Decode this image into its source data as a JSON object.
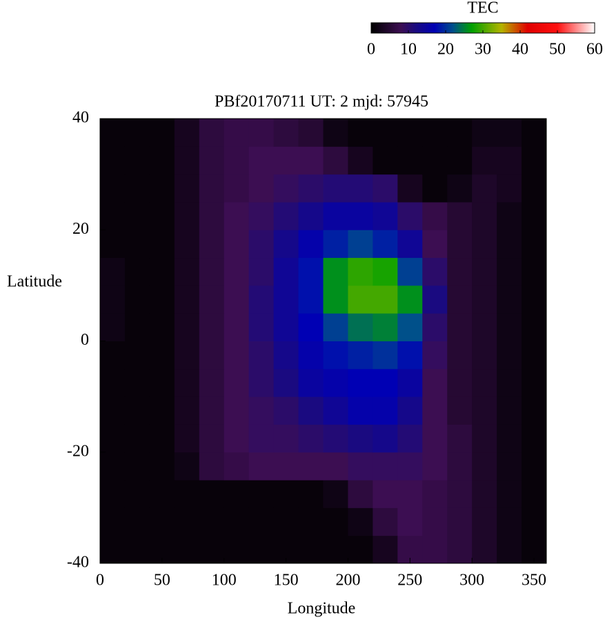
{
  "chart_data": {
    "type": "heatmap",
    "title": "PBf20170711  UT: 2  mjd: 57945",
    "xlabel": "Longitude",
    "ylabel": "Latitude",
    "colorbar_label": "TEC",
    "x": [
      10,
      30,
      50,
      70,
      90,
      110,
      130,
      150,
      170,
      190,
      210,
      230,
      250,
      270,
      290,
      310,
      330,
      350
    ],
    "y": [
      -37.5,
      -32.5,
      -27.5,
      -22.5,
      -17.5,
      -12.5,
      -7.5,
      -2.5,
      2.5,
      7.5,
      12.5,
      17.5,
      22.5,
      27.5,
      32.5,
      37.5
    ],
    "z": [
      [
        1,
        1,
        1,
        1,
        1,
        1,
        1,
        1,
        1,
        1,
        1,
        3,
        7,
        7,
        6,
        4,
        2,
        1
      ],
      [
        1,
        1,
        1,
        1,
        1,
        1,
        1,
        1,
        1,
        1,
        2,
        6,
        8,
        7,
        6,
        4,
        2,
        1
      ],
      [
        1,
        1,
        1,
        1,
        1,
        1,
        1,
        1,
        1,
        2,
        6,
        8,
        8,
        7,
        6,
        4,
        2,
        1
      ],
      [
        1,
        1,
        1,
        2,
        6,
        7,
        8,
        8,
        8,
        8,
        9,
        9,
        9,
        8,
        6,
        4,
        2,
        1
      ],
      [
        1,
        1,
        1,
        3,
        6,
        8,
        9,
        9,
        10,
        11,
        12,
        13,
        11,
        8,
        6,
        4,
        2,
        1
      ],
      [
        1,
        1,
        1,
        3,
        6,
        8,
        9,
        10,
        12,
        14,
        16,
        16,
        13,
        8,
        5,
        4,
        2,
        1
      ],
      [
        1,
        1,
        1,
        3,
        6,
        8,
        10,
        12,
        15,
        16,
        17,
        17,
        15,
        8,
        5,
        4,
        2,
        1
      ],
      [
        1,
        1,
        1,
        3,
        6,
        8,
        10,
        13,
        16,
        18,
        19,
        20,
        18,
        9,
        5,
        4,
        2,
        1
      ],
      [
        2,
        1,
        1,
        3,
        6,
        8,
        11,
        14,
        17,
        21,
        24,
        25,
        22,
        10,
        5,
        4,
        2,
        1
      ],
      [
        2,
        1,
        1,
        3,
        6,
        8,
        11,
        14,
        18,
        26,
        30,
        30,
        26,
        12,
        5,
        4,
        2,
        1
      ],
      [
        2,
        1,
        1,
        3,
        6,
        8,
        10,
        14,
        18,
        26,
        29,
        28,
        21,
        10,
        5,
        4,
        2,
        1
      ],
      [
        1,
        1,
        1,
        3,
        6,
        8,
        10,
        13,
        16,
        19,
        21,
        19,
        14,
        8,
        5,
        4,
        2,
        1
      ],
      [
        1,
        1,
        1,
        3,
        6,
        8,
        9,
        11,
        13,
        15,
        15,
        14,
        10,
        7,
        5,
        4,
        2,
        1
      ],
      [
        1,
        1,
        1,
        3,
        6,
        7,
        8,
        9,
        10,
        11,
        11,
        10,
        3,
        1,
        2,
        4,
        3,
        1
      ],
      [
        1,
        1,
        1,
        3,
        6,
        7,
        8,
        8,
        8,
        6,
        3,
        1,
        1,
        1,
        1,
        3,
        3,
        1
      ],
      [
        1,
        1,
        1,
        3,
        6,
        7,
        7,
        6,
        5,
        2,
        1,
        1,
        1,
        1,
        1,
        2,
        2,
        1
      ]
    ],
    "xlim": [
      0,
      360
    ],
    "xticks": [
      0,
      50,
      100,
      150,
      200,
      250,
      300,
      350
    ],
    "ylim": [
      -40,
      40
    ],
    "yticks": [
      -40,
      -20,
      0,
      20,
      40
    ],
    "zlim": [
      0,
      60
    ],
    "zticks": [
      0,
      10,
      20,
      30,
      40,
      50,
      60
    ],
    "colorscale": [
      [
        0,
        "#000000"
      ],
      [
        8,
        "#3c0e52"
      ],
      [
        12,
        "#1a0a80"
      ],
      [
        17,
        "#0000b4"
      ],
      [
        22,
        "#00508a"
      ],
      [
        27,
        "#00a000"
      ],
      [
        35,
        "#b4b400"
      ],
      [
        42,
        "#e00000"
      ],
      [
        50,
        "#ff1010"
      ],
      [
        60,
        "#ffffff"
      ]
    ]
  }
}
